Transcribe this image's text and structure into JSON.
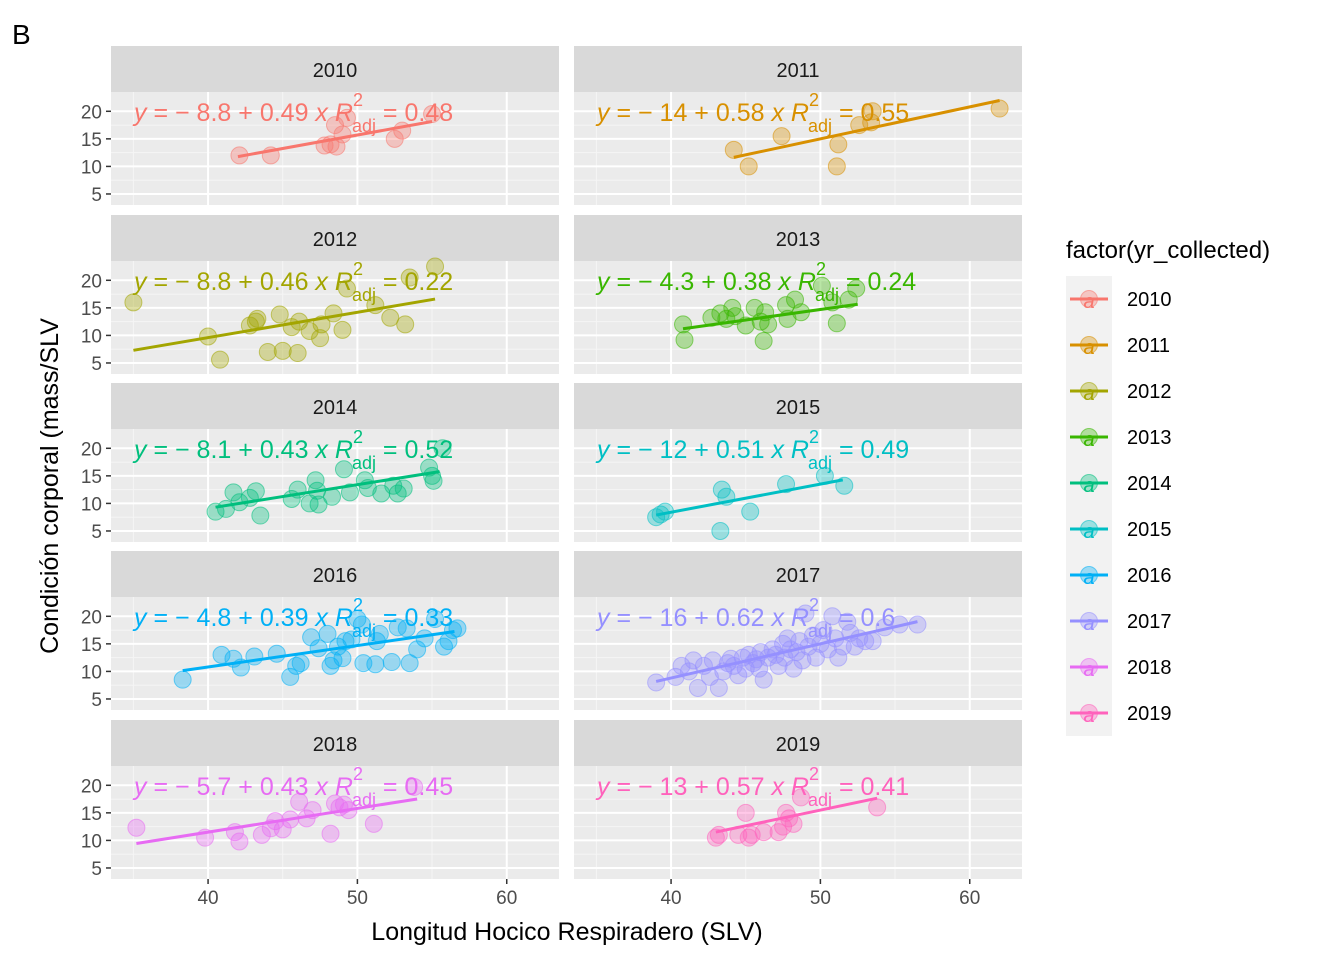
{
  "panel_tag": "B",
  "colors": {
    "panel_bg": "#ebebeb",
    "grid_major": "#ffffff",
    "strip_bg": "#d9d9d9",
    "tick": "#333333"
  },
  "chart_data": {
    "type": "scatter",
    "facet_layout": "2 columns x 5 rows",
    "xlabel": "Longitud Hocico Respiradero (SLV)",
    "ylabel": "Condición corporal (mass/SLV",
    "xlim": [
      33.5,
      63.5
    ],
    "ylim": [
      3,
      23.5
    ],
    "x_ticks": [
      40,
      50,
      60
    ],
    "y_ticks": [
      5,
      10,
      15,
      20
    ],
    "grid": true,
    "legend": {
      "title": "factor(yr_collected)",
      "position": "right",
      "key_glyph": "a",
      "entries": [
        "2010",
        "2011",
        "2012",
        "2013",
        "2014",
        "2015",
        "2016",
        "2017",
        "2018",
        "2019"
      ]
    },
    "series": [
      {
        "name": "2010",
        "color": "#F8766D",
        "intercept": -8.8,
        "slope": 0.49,
        "r2_adj": "0.48",
        "eq_intercept": "8.8",
        "eq_slope": "0.49",
        "fit_x": [
          42,
          55
        ],
        "points": [
          [
            42.1,
            12
          ],
          [
            44.2,
            12
          ],
          [
            47.8,
            13.8
          ],
          [
            48.2,
            14
          ],
          [
            48.5,
            17.5
          ],
          [
            48.6,
            13.6
          ],
          [
            49,
            15.8
          ],
          [
            49.3,
            18.8
          ],
          [
            52.5,
            15
          ],
          [
            53,
            16.5
          ],
          [
            55,
            19.5
          ]
        ]
      },
      {
        "name": "2011",
        "color": "#D89000",
        "intercept": -14,
        "slope": 0.58,
        "r2_adj": "0.55",
        "eq_intercept": "14",
        "eq_slope": "0.58",
        "fit_x": [
          44.2,
          62
        ],
        "points": [
          [
            44.2,
            13
          ],
          [
            45.2,
            10
          ],
          [
            47.4,
            15.5
          ],
          [
            51.1,
            10
          ],
          [
            51.2,
            14
          ],
          [
            52.6,
            17.5
          ],
          [
            53.4,
            18
          ],
          [
            53.5,
            20
          ],
          [
            62,
            20.5
          ]
        ]
      },
      {
        "name": "2012",
        "color": "#A3A500",
        "intercept": -8.8,
        "slope": 0.46,
        "r2_adj": "0.22",
        "eq_intercept": "8.8",
        "eq_slope": "0.46",
        "fit_x": [
          35,
          55.2
        ],
        "points": [
          [
            35,
            16
          ],
          [
            40,
            9.8
          ],
          [
            40.8,
            5.6
          ],
          [
            42.8,
            11.8
          ],
          [
            43.2,
            12.5
          ],
          [
            43.3,
            13
          ],
          [
            44,
            7
          ],
          [
            44.8,
            13.8
          ],
          [
            45,
            7.2
          ],
          [
            45.6,
            11.5
          ],
          [
            46,
            6.8
          ],
          [
            46.1,
            12.5
          ],
          [
            46.8,
            10.8
          ],
          [
            47.5,
            9.5
          ],
          [
            47.6,
            12
          ],
          [
            48.4,
            14
          ],
          [
            49,
            11
          ],
          [
            49.3,
            18.5
          ],
          [
            51.2,
            15.5
          ],
          [
            52.2,
            13.2
          ],
          [
            53.2,
            12
          ],
          [
            53.5,
            20.5
          ],
          [
            55.2,
            22.5
          ]
        ]
      },
      {
        "name": "2013",
        "color": "#39B600",
        "intercept": -4.3,
        "slope": 0.38,
        "r2_adj": "0.24",
        "eq_intercept": "4.3",
        "eq_slope": "0.38",
        "fit_x": [
          40.8,
          52.5
        ],
        "points": [
          [
            40.8,
            12
          ],
          [
            40.9,
            9.2
          ],
          [
            42.7,
            13.2
          ],
          [
            43.3,
            14
          ],
          [
            43.7,
            13
          ],
          [
            44.1,
            15
          ],
          [
            44.3,
            13.5
          ],
          [
            45,
            11.8
          ],
          [
            45.6,
            15
          ],
          [
            46,
            12.5
          ],
          [
            46.2,
            9
          ],
          [
            46.3,
            14.2
          ],
          [
            46.5,
            12
          ],
          [
            47.7,
            15.5
          ],
          [
            47.8,
            13
          ],
          [
            48.3,
            16.5
          ],
          [
            48.7,
            14.2
          ],
          [
            50.1,
            19
          ],
          [
            50.8,
            16
          ],
          [
            51.1,
            12.2
          ],
          [
            51.9,
            16.5
          ],
          [
            52.4,
            18.5
          ]
        ]
      },
      {
        "name": "2014",
        "color": "#00BF7D",
        "intercept": -8.1,
        "slope": 0.43,
        "r2_adj": "0.52",
        "eq_intercept": "8.1",
        "eq_slope": "0.43",
        "fit_x": [
          40.5,
          55.5
        ],
        "points": [
          [
            40.5,
            8.5
          ],
          [
            41.2,
            9
          ],
          [
            41.7,
            12
          ],
          [
            42.1,
            10.2
          ],
          [
            42.8,
            11
          ],
          [
            43.2,
            12.2
          ],
          [
            43.5,
            7.8
          ],
          [
            45.6,
            10.8
          ],
          [
            46,
            12.5
          ],
          [
            46.8,
            10
          ],
          [
            47.2,
            14.2
          ],
          [
            47.3,
            12.3
          ],
          [
            47.4,
            9.8
          ],
          [
            48.3,
            11.2
          ],
          [
            49.1,
            16.2
          ],
          [
            49.5,
            12
          ],
          [
            50.5,
            14.2
          ],
          [
            50.7,
            12.8
          ],
          [
            51.6,
            11.8
          ],
          [
            52.4,
            13.2
          ],
          [
            52.7,
            11.8
          ],
          [
            53.1,
            12.7
          ],
          [
            54.8,
            16.5
          ],
          [
            55,
            15
          ],
          [
            55.1,
            14.1
          ],
          [
            55.7,
            20
          ]
        ]
      },
      {
        "name": "2015",
        "color": "#00BFC4",
        "intercept": -12,
        "slope": 0.51,
        "r2_adj": "0.49",
        "eq_intercept": "12",
        "eq_slope": "0.51",
        "fit_x": [
          39,
          51.5
        ],
        "points": [
          [
            39,
            7.5
          ],
          [
            39.3,
            8
          ],
          [
            39.6,
            8.5
          ],
          [
            43.4,
            12.5
          ],
          [
            43.7,
            11.2
          ],
          [
            43.3,
            5
          ],
          [
            45.3,
            8.5
          ],
          [
            47.7,
            13.5
          ],
          [
            50.3,
            15
          ],
          [
            51.6,
            13.2
          ]
        ]
      },
      {
        "name": "2016",
        "color": "#00B0F6",
        "intercept": -4.8,
        "slope": 0.39,
        "r2_adj": "0.33",
        "eq_intercept": "4.8",
        "eq_slope": "0.39",
        "fit_x": [
          38.3,
          56.5
        ],
        "points": [
          [
            38.3,
            8.5
          ],
          [
            40.9,
            13
          ],
          [
            41.7,
            12.3
          ],
          [
            42.2,
            10.7
          ],
          [
            43.1,
            12.7
          ],
          [
            44.6,
            13.2
          ],
          [
            45.5,
            9
          ],
          [
            45.9,
            11
          ],
          [
            46.2,
            11.5
          ],
          [
            46.9,
            16.2
          ],
          [
            47.4,
            14.2
          ],
          [
            48,
            16.8
          ],
          [
            48.2,
            11
          ],
          [
            48.4,
            12
          ],
          [
            48.7,
            14.5
          ],
          [
            49,
            12.4
          ],
          [
            49.2,
            15.5
          ],
          [
            49.6,
            15.8
          ],
          [
            50,
            19.5
          ],
          [
            50.3,
            18.5
          ],
          [
            50.4,
            11.5
          ],
          [
            51.2,
            11.3
          ],
          [
            51.3,
            15.5
          ],
          [
            51.5,
            16.8
          ],
          [
            52.3,
            11.7
          ],
          [
            52.7,
            18
          ],
          [
            53.3,
            17.8
          ],
          [
            53.5,
            11.5
          ],
          [
            54,
            14
          ],
          [
            54.5,
            16
          ],
          [
            55.2,
            19.5
          ],
          [
            55.8,
            14.5
          ],
          [
            56.1,
            15.5
          ],
          [
            56.4,
            17.5
          ],
          [
            56.7,
            17.8
          ]
        ]
      },
      {
        "name": "2017",
        "color": "#9590FF",
        "intercept": -16,
        "slope": 0.62,
        "r2_adj": "0.6",
        "eq_intercept": "16",
        "eq_slope": "0.62",
        "fit_x": [
          39,
          56.5
        ],
        "points": [
          [
            39,
            8
          ],
          [
            40.3,
            9
          ],
          [
            40.7,
            11
          ],
          [
            41.2,
            10
          ],
          [
            41.5,
            12
          ],
          [
            41.8,
            7
          ],
          [
            42.2,
            11
          ],
          [
            42.6,
            9
          ],
          [
            42.8,
            12
          ],
          [
            43.2,
            7
          ],
          [
            43.5,
            10
          ],
          [
            43.8,
            11.5
          ],
          [
            44,
            12.3
          ],
          [
            44.2,
            11
          ],
          [
            44.5,
            9.3
          ],
          [
            44.8,
            12.5
          ],
          [
            45,
            10.5
          ],
          [
            45.2,
            13
          ],
          [
            45.5,
            11.5
          ],
          [
            45.7,
            12.2
          ],
          [
            45.9,
            10.5
          ],
          [
            46,
            13.5
          ],
          [
            46.2,
            8.5
          ],
          [
            46.5,
            12.5
          ],
          [
            46.8,
            14
          ],
          [
            47,
            13
          ],
          [
            47.2,
            11
          ],
          [
            47.5,
            15
          ],
          [
            47.6,
            12.5
          ],
          [
            47.8,
            16
          ],
          [
            48,
            14
          ],
          [
            48.2,
            10.5
          ],
          [
            48.4,
            13.5
          ],
          [
            48.6,
            15.5
          ],
          [
            48.8,
            12
          ],
          [
            49,
            20.5
          ],
          [
            49.2,
            14.5
          ],
          [
            49.5,
            16.5
          ],
          [
            49.7,
            12.5
          ],
          [
            50,
            15
          ],
          [
            50.2,
            17.5
          ],
          [
            50.5,
            14
          ],
          [
            50.8,
            20
          ],
          [
            51,
            16
          ],
          [
            51.2,
            12.5
          ],
          [
            51.5,
            14.5
          ],
          [
            51.8,
            19
          ],
          [
            52,
            17
          ],
          [
            52.3,
            14.5
          ],
          [
            52.6,
            16
          ],
          [
            53,
            15.5
          ],
          [
            53.5,
            15.5
          ],
          [
            54.3,
            18
          ],
          [
            55.3,
            18.5
          ],
          [
            56.5,
            18.5
          ]
        ]
      },
      {
        "name": "2018",
        "color": "#E76BF3",
        "intercept": -5.7,
        "slope": 0.43,
        "r2_adj": "0.45",
        "eq_intercept": "5.7",
        "eq_slope": "0.43",
        "fit_x": [
          35.2,
          54
        ],
        "points": [
          [
            35.2,
            12.3
          ],
          [
            39.8,
            10.5
          ],
          [
            41.8,
            11.5
          ],
          [
            42.1,
            9.8
          ],
          [
            43.6,
            11
          ],
          [
            44.2,
            12.2
          ],
          [
            44.5,
            13.5
          ],
          [
            45,
            12
          ],
          [
            45.5,
            13.8
          ],
          [
            46.1,
            17
          ],
          [
            46.6,
            14
          ],
          [
            47,
            15.5
          ],
          [
            48.2,
            11.2
          ],
          [
            48.5,
            16.7
          ],
          [
            48.8,
            16
          ],
          [
            49.1,
            16.5
          ],
          [
            49.4,
            15.5
          ],
          [
            51.1,
            13
          ],
          [
            53.8,
            19.7
          ]
        ]
      },
      {
        "name": "2019",
        "color": "#FF62BC",
        "intercept": -13,
        "slope": 0.57,
        "r2_adj": "0.41",
        "eq_intercept": "13",
        "eq_slope": "0.57",
        "fit_x": [
          43,
          53.8
        ],
        "points": [
          [
            43,
            10.5
          ],
          [
            43.2,
            11
          ],
          [
            44.5,
            11
          ],
          [
            45,
            15
          ],
          [
            45.2,
            10.5
          ],
          [
            45.4,
            11
          ],
          [
            46.2,
            11.5
          ],
          [
            47.2,
            11.5
          ],
          [
            47.5,
            12.5
          ],
          [
            47.7,
            15
          ],
          [
            47.9,
            14
          ],
          [
            48.2,
            13
          ],
          [
            48.7,
            17.8
          ],
          [
            53.8,
            16
          ]
        ]
      }
    ]
  }
}
